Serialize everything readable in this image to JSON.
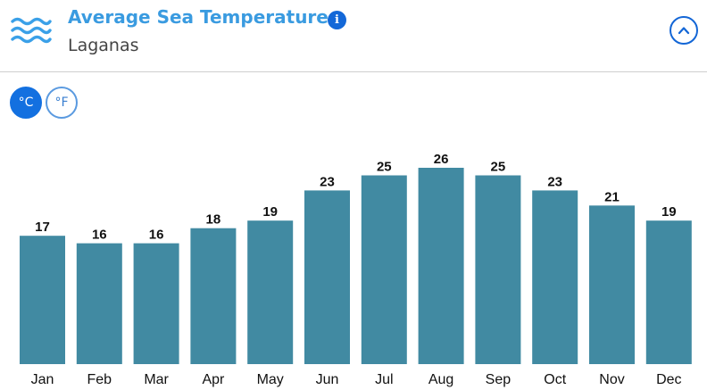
{
  "header": {
    "title": "Average Sea Temperature",
    "subtitle": "Laganas",
    "waves_icon": "waves-icon",
    "info_icon": "info-icon",
    "info_glyph": "i",
    "collapse_icon": "chevron-up-icon"
  },
  "units": {
    "celsius_label": "°C",
    "fahrenheit_label": "°F",
    "selected": "celsius"
  },
  "colors": {
    "accent": "#1370e0",
    "title": "#3a9be0",
    "bar": "#418aa2"
  },
  "chart_data": {
    "type": "bar",
    "categories": [
      "Jan",
      "Feb",
      "Mar",
      "Apr",
      "May",
      "Jun",
      "Jul",
      "Aug",
      "Sep",
      "Oct",
      "Nov",
      "Dec"
    ],
    "values": [
      17,
      16,
      16,
      18,
      19,
      23,
      25,
      26,
      25,
      23,
      21,
      19
    ],
    "ylim": [
      0,
      26
    ],
    "data_labels": true,
    "grid": false,
    "legend": false
  }
}
